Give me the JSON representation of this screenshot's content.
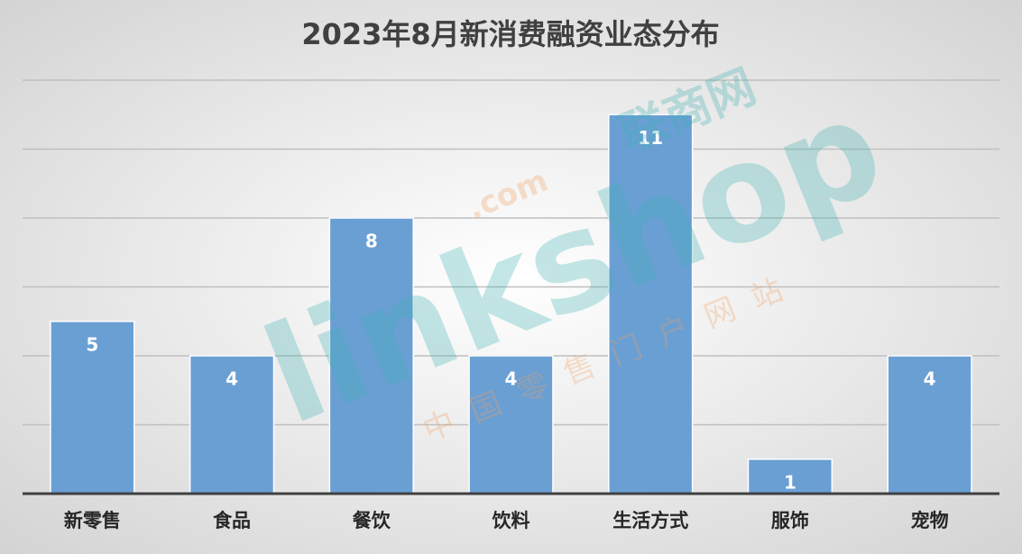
{
  "chart_data": {
    "type": "bar",
    "title": "2023年8月新消费融资业态分布",
    "categories": [
      "新零售",
      "食品",
      "餐饮",
      "饮料",
      "生活方式",
      "服饰",
      "宠物"
    ],
    "values": [
      5,
      4,
      8,
      4,
      11,
      1,
      4
    ],
    "color": "#6a9fd4",
    "ylim": [
      0,
      12
    ],
    "yticks": [
      0,
      2,
      4,
      6,
      8,
      10,
      12
    ],
    "grid": true,
    "watermark": {
      "brand": "linkshop",
      "domain": ".com",
      "cn_name": "联商网",
      "slogan": "中国零售门户网站"
    }
  }
}
